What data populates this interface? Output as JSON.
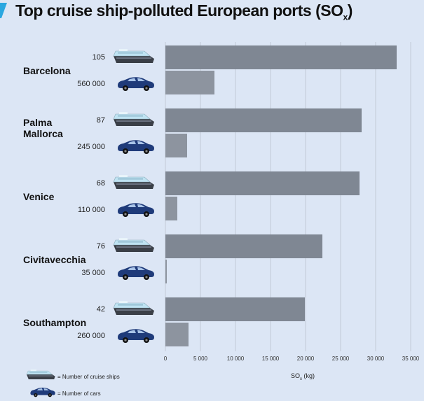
{
  "title_main": "Top cruise ship-polluted European ports (SO",
  "title_sub": "x",
  "title_end": ")",
  "chart_data": {
    "type": "bar",
    "orientation": "horizontal",
    "categories": [
      "Barcelona",
      "Palma Mallorca",
      "Venice",
      "Civitavecchia",
      "Southampton"
    ],
    "series": [
      {
        "name": "Number of cruise ships",
        "counts": [
          "105",
          "87",
          "68",
          "76",
          "42"
        ],
        "values": [
          33000,
          28000,
          27700,
          22400,
          19900
        ]
      },
      {
        "name": "Number of cars",
        "counts": [
          "560 000",
          "245 000",
          "110 000",
          "35 000",
          "260 000"
        ],
        "values": [
          7000,
          3100,
          1700,
          200,
          3300
        ]
      }
    ],
    "xlabel_main": "SO",
    "xlabel_sub": "x",
    "xlabel_end": " (kg)",
    "xlim": [
      0,
      35000
    ],
    "xticks": [
      "0",
      "5 000",
      "10 000",
      "15 000",
      "20 000",
      "25 000",
      "30 000",
      "35 000"
    ],
    "grid": true,
    "legend_position": "bottom-left"
  },
  "legend": {
    "ships": "= Number of cruise ships",
    "cars": "= Number of cars"
  },
  "colors": {
    "background": "#dce6f5",
    "ship_bar": "#7f8793",
    "car_bar": "#8d949f",
    "accent": "#2aa7e0",
    "car_icon": "#1f3b7a"
  }
}
